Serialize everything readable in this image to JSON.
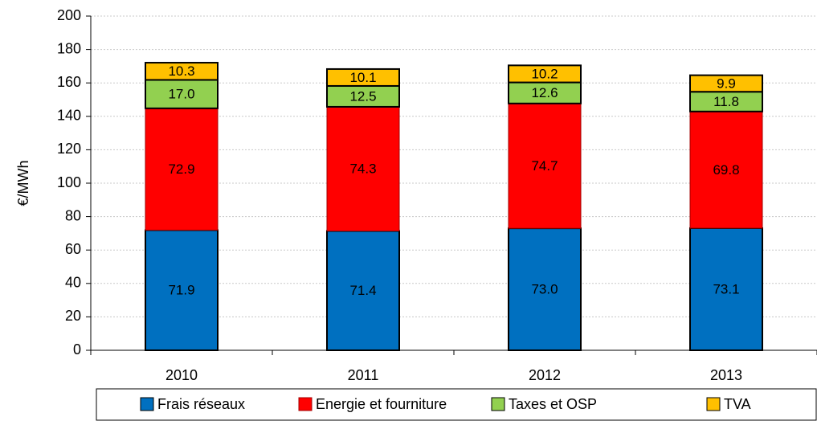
{
  "chart_data": {
    "type": "stacked_bar",
    "y_label": "€/MWh",
    "categories": [
      "2010",
      "2011",
      "2012",
      "2013"
    ],
    "series": [
      {
        "name": "Frais réseaux",
        "color": "#0070c0",
        "values": [
          71.9,
          71.4,
          73.0,
          73.1
        ],
        "value_labels": [
          "71.9",
          "71.4",
          "73.0",
          "73.1"
        ]
      },
      {
        "name": "Energie et fourniture",
        "color": "#ff0000",
        "values": [
          72.9,
          74.3,
          74.7,
          69.8
        ],
        "value_labels": [
          "72.9",
          "74.3",
          "74.7",
          "69.8"
        ]
      },
      {
        "name": "Taxes et OSP",
        "color": "#92d050",
        "values": [
          17.0,
          12.5,
          12.6,
          11.8
        ],
        "value_labels": [
          "17.0",
          "12.5",
          "12.6",
          "11.8"
        ]
      },
      {
        "name": "TVA",
        "color": "#ffc000",
        "values": [
          10.3,
          10.1,
          10.2,
          9.9
        ],
        "value_labels": [
          "10.3",
          "10.1",
          "10.2",
          "9.9"
        ]
      }
    ],
    "ylim": [
      0,
      200
    ],
    "yticks": [
      0,
      20,
      40,
      60,
      80,
      100,
      120,
      140,
      160,
      180,
      200
    ],
    "grid": true,
    "legend": "bottom"
  }
}
